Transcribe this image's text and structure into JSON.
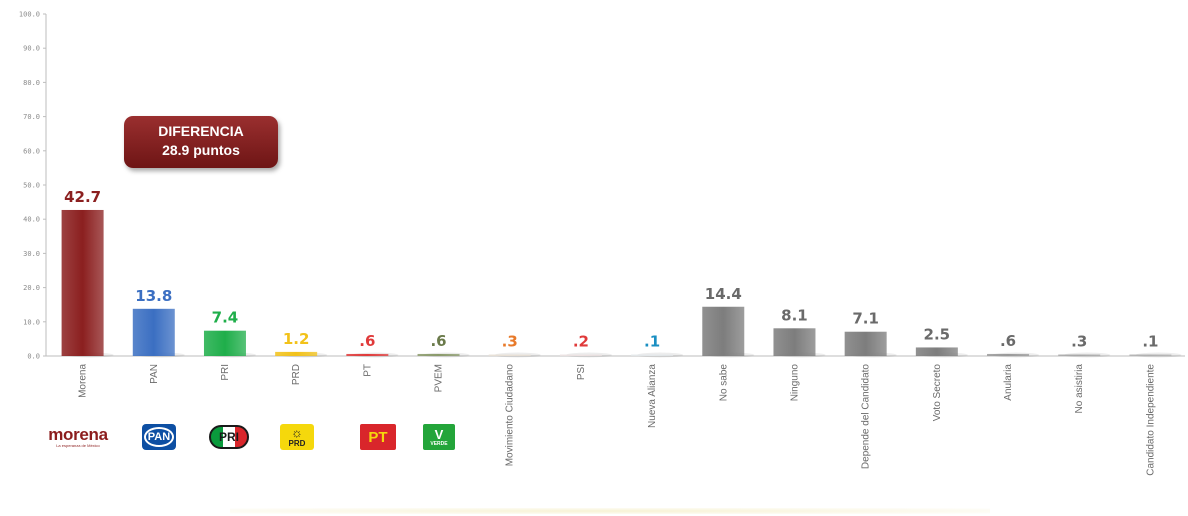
{
  "chart_data": {
    "type": "bar",
    "title": "",
    "xlabel": "",
    "ylabel": "",
    "ylim": [
      0,
      100
    ],
    "yticks": [
      "0.0",
      "10.0",
      "20.0",
      "30.0",
      "40.0",
      "50.0",
      "60.0",
      "70.0",
      "80.0",
      "90.0",
      "100.0"
    ],
    "grid": false,
    "categories": [
      "Morena",
      "PAN",
      "PRI",
      "PRD",
      "PT",
      "PVEM",
      "Movimiento Ciudadano",
      "PSI",
      "Nueva Alianza",
      "No sabe",
      "Ninguno",
      "Depende del Candidato",
      "Voto Secreto",
      "Anularia",
      "No asistiria",
      "Candidato Independiente"
    ],
    "values": [
      42.7,
      13.8,
      7.4,
      1.2,
      0.6,
      0.6,
      0.3,
      0.2,
      0.1,
      14.4,
      8.1,
      7.1,
      2.5,
      0.6,
      0.3,
      0.1
    ],
    "value_labels": [
      "42.7",
      "13.8",
      "7.4",
      "1.2",
      ".6",
      ".6",
      ".3",
      ".2",
      ".1",
      "14.4",
      "8.1",
      "7.1",
      "2.5",
      ".6",
      ".3",
      ".1"
    ],
    "bar_colors": [
      "#8b1f1f",
      "#3b6fc2",
      "#1fae4a",
      "#f2c21a",
      "#e03a3a",
      "#8a9a6a",
      "#e8e0d6",
      "#ece2e2",
      "#e4e8ea",
      "#7d7d7d",
      "#7d7d7d",
      "#7d7d7d",
      "#7d7d7d",
      "#9a9a9a",
      "#a8a8a8",
      "#b0b0b0"
    ],
    "label_colors": [
      "#8b1f1f",
      "#3b6fc2",
      "#1fae4a",
      "#f2c21a",
      "#e03a3a",
      "#6a7a4a",
      "#e87a2a",
      "#e03a3a",
      "#1a8fc2",
      "#6a6a6a",
      "#6a6a6a",
      "#6a6a6a",
      "#6a6a6a",
      "#6a6a6a",
      "#6a6a6a",
      "#6a6a6a"
    ]
  },
  "callout": {
    "line1": "DIFERENCIA",
    "line2": "28.9 puntos"
  },
  "logos": {
    "morena_word": "morena",
    "morena_tag": "La esperanza de México",
    "pan": "PAN",
    "pri": "PRI",
    "prd_sun": "☼",
    "prd": "PRD",
    "pt": "PT",
    "pvem_mark": "V",
    "pvem": "VERDE"
  },
  "colors": {
    "morena": "#8b1f1f",
    "callout_bg": "#7a1c1c"
  }
}
